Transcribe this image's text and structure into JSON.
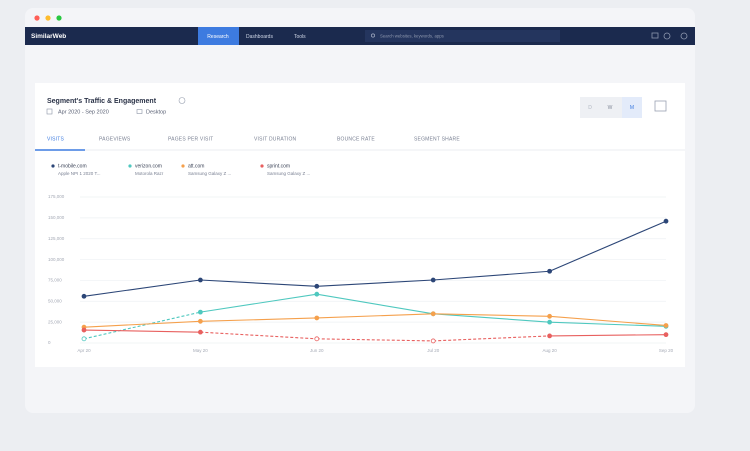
{
  "window": {
    "logo": "SimilarWeb",
    "nav": [
      "Research",
      "Dashboards",
      "Tools"
    ],
    "search_placeholder": "Search websites, keywords, apps"
  },
  "card": {
    "title": "Segment's Traffic & Engagement",
    "date_range": "Apr 2020 - Sep 2020",
    "device": "Desktop",
    "granularity": [
      "D",
      "W",
      "M"
    ],
    "tabs": [
      "VISITS",
      "PAGEVIEWS",
      "PAGES PER VISIT",
      "VISIT DURATION",
      "BOUNCE RATE",
      "SEGMENT SHARE"
    ]
  },
  "chart_data": {
    "type": "line",
    "categories": [
      "Apr 20",
      "May 20",
      "Jun 20",
      "Jul 20",
      "Aug 20",
      "Sep 20"
    ],
    "series": [
      {
        "name": "t-mobile.com",
        "segment": "Apple NPI 1 2020 T...",
        "color": "#2c4677",
        "values": [
          56000,
          75500,
          68000,
          75500,
          86000,
          146000
        ],
        "estimated": [
          false,
          false,
          false,
          false,
          false,
          false
        ]
      },
      {
        "name": "verizon.com",
        "segment": "Motorola Razr",
        "color": "#4fc8bf",
        "values": [
          5000,
          37000,
          58500,
          35000,
          25000,
          20000
        ],
        "estimated": [
          true,
          false,
          false,
          false,
          false,
          false
        ]
      },
      {
        "name": "att.com",
        "segment": "Samsung Galaxy Z ...",
        "color": "#f5a04c",
        "values": [
          19000,
          26000,
          30000,
          35000,
          32000,
          21000
        ],
        "estimated": [
          false,
          false,
          false,
          false,
          false,
          false
        ]
      },
      {
        "name": "sprint.com",
        "segment": "Samsung Galaxy Z ...",
        "color": "#e8605f",
        "values": [
          15500,
          13000,
          5000,
          2500,
          8500,
          10000
        ],
        "estimated": [
          false,
          false,
          true,
          true,
          false,
          false
        ]
      }
    ],
    "ylim": [
      0,
      175000
    ],
    "yticks": [
      0,
      {
        "value": 25000,
        "label": "25,000"
      },
      {
        "value": 50000,
        "label": "50,000"
      },
      {
        "value": 75000,
        "label": "75,000"
      },
      {
        "value": 100000,
        "label": "100,000"
      },
      {
        "value": 125000,
        "label": "125,000"
      },
      {
        "value": 150000,
        "label": "150,000"
      },
      {
        "value": 175000,
        "label": "175,000"
      }
    ],
    "grid": true
  }
}
